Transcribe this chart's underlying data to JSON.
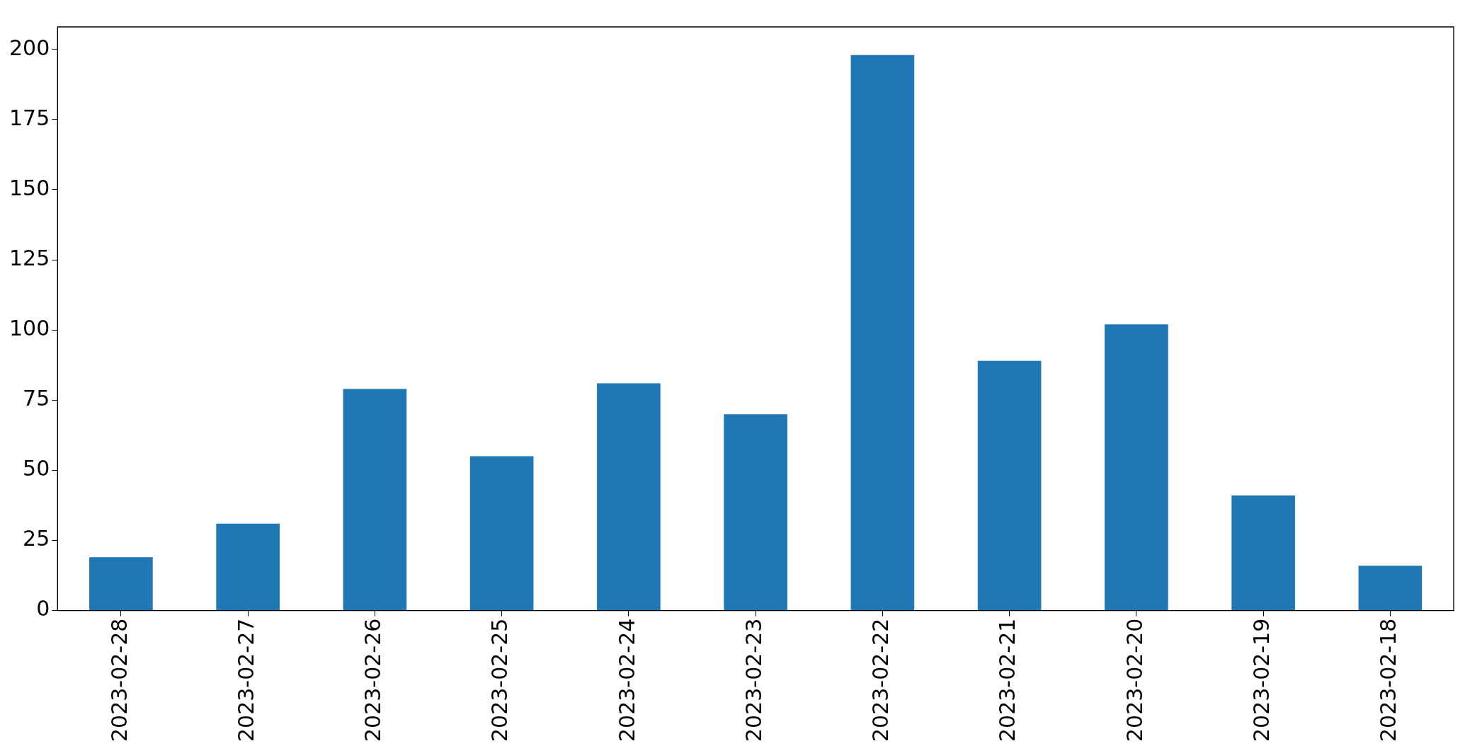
{
  "chart_data": {
    "type": "bar",
    "categories": [
      "2023-02-28",
      "2023-02-27",
      "2023-02-26",
      "2023-02-25",
      "2023-02-24",
      "2023-02-23",
      "2023-02-22",
      "2023-02-21",
      "2023-02-20",
      "2023-02-19",
      "2023-02-18"
    ],
    "values": [
      19,
      31,
      79,
      55,
      81,
      70,
      198,
      89,
      102,
      41,
      16
    ],
    "color": "#1f77b4",
    "ylim": [
      0,
      208
    ],
    "yticks": [
      0,
      25,
      50,
      75,
      100,
      125,
      150,
      175,
      200
    ],
    "grid": false,
    "legend": false
  }
}
